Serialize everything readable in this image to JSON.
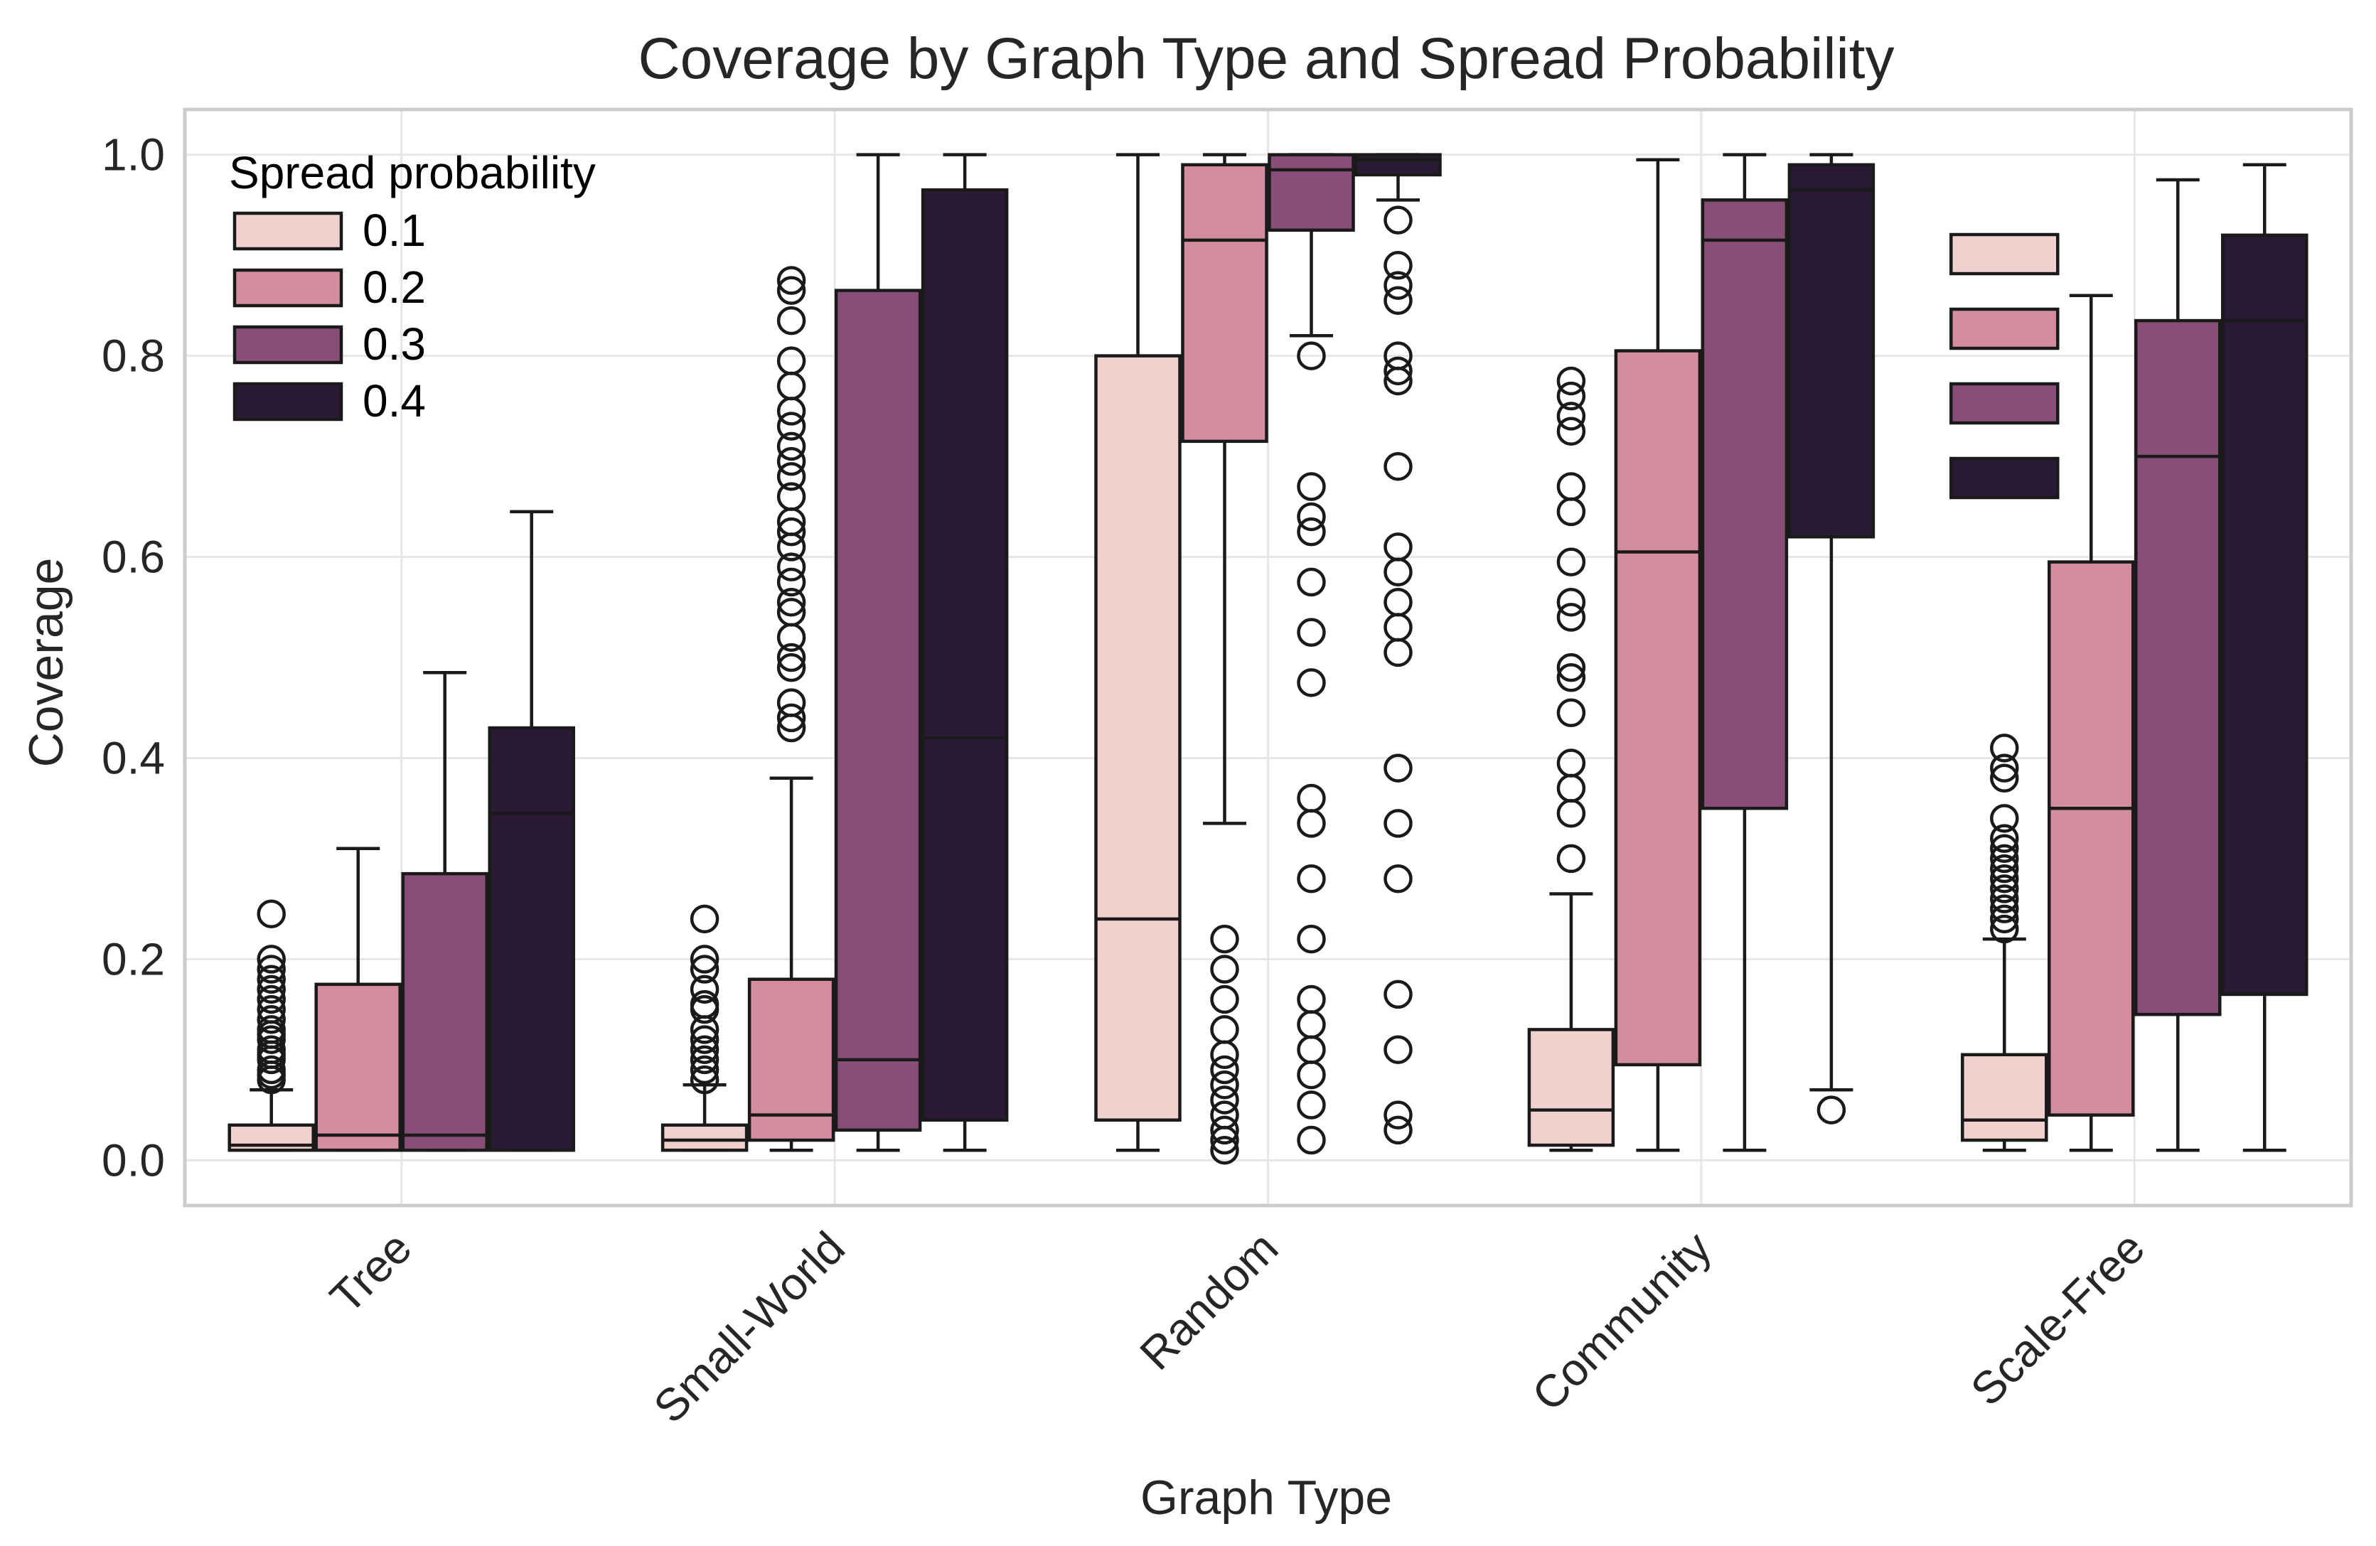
{
  "chart_data": {
    "type": "box",
    "title": "Coverage by Graph Type and Spread Probability",
    "xlabel": "Graph Type",
    "ylabel": "Coverage",
    "ylim": [
      -0.045,
      1.045
    ],
    "yticks": [
      0.0,
      0.2,
      0.4,
      0.6,
      0.8,
      1.0
    ],
    "ytick_labels": [
      "0.0",
      "0.2",
      "0.4",
      "0.6",
      "0.8",
      "1.0"
    ],
    "grid": true,
    "categories": [
      "Tree",
      "Small-World",
      "Random",
      "Community",
      "Scale-Free"
    ],
    "legend": {
      "title": "Spread probability",
      "location": "top-left",
      "entries": [
        "0.1",
        "0.2",
        "0.3",
        "0.4"
      ]
    },
    "series": [
      {
        "name": "0.1",
        "color": "#f1d1ce",
        "boxes": [
          {
            "whislo": 0.01,
            "q1": 0.01,
            "med": 0.015,
            "q3": 0.035,
            "whishi": 0.07,
            "fliers": [
              0.08,
              0.085,
              0.09,
              0.1,
              0.105,
              0.11,
              0.12,
              0.125,
              0.13,
              0.14,
              0.15,
              0.16,
              0.17,
              0.18,
              0.19,
              0.2,
              0.245
            ]
          },
          {
            "whislo": 0.01,
            "q1": 0.01,
            "med": 0.02,
            "q3": 0.035,
            "whishi": 0.075,
            "fliers": [
              0.08,
              0.09,
              0.1,
              0.11,
              0.12,
              0.13,
              0.15,
              0.155,
              0.17,
              0.19,
              0.2,
              0.24
            ]
          },
          {
            "whislo": 0.01,
            "q1": 0.04,
            "med": 0.24,
            "q3": 0.8,
            "whishi": 1.0,
            "fliers": []
          },
          {
            "whislo": 0.01,
            "q1": 0.015,
            "med": 0.05,
            "q3": 0.13,
            "whishi": 0.265,
            "fliers": [
              0.3,
              0.345,
              0.37,
              0.395,
              0.445,
              0.48,
              0.49,
              0.54,
              0.555,
              0.595,
              0.645,
              0.67,
              0.725,
              0.74,
              0.76,
              0.775
            ]
          },
          {
            "whislo": 0.01,
            "q1": 0.02,
            "med": 0.04,
            "q3": 0.105,
            "whishi": 0.22,
            "fliers": [
              0.23,
              0.24,
              0.25,
              0.26,
              0.27,
              0.28,
              0.29,
              0.3,
              0.31,
              0.32,
              0.34,
              0.38,
              0.39,
              0.41
            ]
          }
        ]
      },
      {
        "name": "0.2",
        "color": "#d48c9f",
        "boxes": [
          {
            "whislo": 0.01,
            "q1": 0.01,
            "med": 0.025,
            "q3": 0.175,
            "whishi": 0.31,
            "fliers": []
          },
          {
            "whislo": 0.01,
            "q1": 0.02,
            "med": 0.045,
            "q3": 0.18,
            "whishi": 0.38,
            "fliers": [
              0.43,
              0.44,
              0.455,
              0.49,
              0.5,
              0.52,
              0.545,
              0.555,
              0.575,
              0.59,
              0.61,
              0.625,
              0.635,
              0.66,
              0.68,
              0.695,
              0.71,
              0.73,
              0.745,
              0.77,
              0.795,
              0.835,
              0.865,
              0.875
            ]
          },
          {
            "whislo": 0.335,
            "q1": 0.715,
            "med": 0.915,
            "q3": 0.99,
            "whishi": 1.0,
            "fliers": [
              0.01,
              0.02,
              0.03,
              0.045,
              0.06,
              0.075,
              0.09,
              0.105,
              0.13,
              0.16,
              0.19,
              0.22
            ]
          },
          {
            "whislo": 0.01,
            "q1": 0.095,
            "med": 0.605,
            "q3": 0.805,
            "whishi": 0.995,
            "fliers": []
          },
          {
            "whislo": 0.01,
            "q1": 0.045,
            "med": 0.35,
            "q3": 0.595,
            "whishi": 0.86,
            "fliers": []
          }
        ]
      },
      {
        "name": "0.3",
        "color": "#884e77",
        "boxes": [
          {
            "whislo": 0.01,
            "q1": 0.01,
            "med": 0.025,
            "q3": 0.285,
            "whishi": 0.485,
            "fliers": []
          },
          {
            "whislo": 0.01,
            "q1": 0.03,
            "med": 0.1,
            "q3": 0.865,
            "whishi": 1.0,
            "fliers": []
          },
          {
            "whislo": 0.82,
            "q1": 0.925,
            "med": 0.985,
            "q3": 1.0,
            "whishi": 1.0,
            "fliers": [
              0.02,
              0.055,
              0.085,
              0.11,
              0.135,
              0.16,
              0.22,
              0.28,
              0.335,
              0.36,
              0.475,
              0.525,
              0.575,
              0.625,
              0.64,
              0.67,
              0.8
            ]
          },
          {
            "whislo": 0.01,
            "q1": 0.35,
            "med": 0.915,
            "q3": 0.955,
            "whishi": 1.0,
            "fliers": []
          },
          {
            "whislo": 0.01,
            "q1": 0.145,
            "med": 0.7,
            "q3": 0.835,
            "whishi": 0.975,
            "fliers": []
          }
        ]
      },
      {
        "name": "0.4",
        "color": "#2b1a33",
        "boxes": [
          {
            "whislo": 0.01,
            "q1": 0.01,
            "med": 0.345,
            "q3": 0.43,
            "whishi": 0.645,
            "fliers": []
          },
          {
            "whislo": 0.01,
            "q1": 0.04,
            "med": 0.42,
            "q3": 0.965,
            "whishi": 1.0,
            "fliers": []
          },
          {
            "whislo": 0.955,
            "q1": 0.98,
            "med": 0.995,
            "q3": 1.0,
            "whishi": 1.0,
            "fliers": [
              0.03,
              0.045,
              0.11,
              0.165,
              0.28,
              0.335,
              0.39,
              0.505,
              0.53,
              0.555,
              0.585,
              0.61,
              0.69,
              0.775,
              0.785,
              0.8,
              0.855,
              0.87,
              0.89,
              0.935
            ]
          },
          {
            "whislo": 0.07,
            "q1": 0.62,
            "med": 0.965,
            "q3": 0.99,
            "whishi": 1.0,
            "fliers": [
              0.05
            ]
          },
          {
            "whislo": 0.01,
            "q1": 0.165,
            "med": 0.835,
            "q3": 0.92,
            "whishi": 0.99,
            "fliers": []
          }
        ]
      }
    ]
  }
}
